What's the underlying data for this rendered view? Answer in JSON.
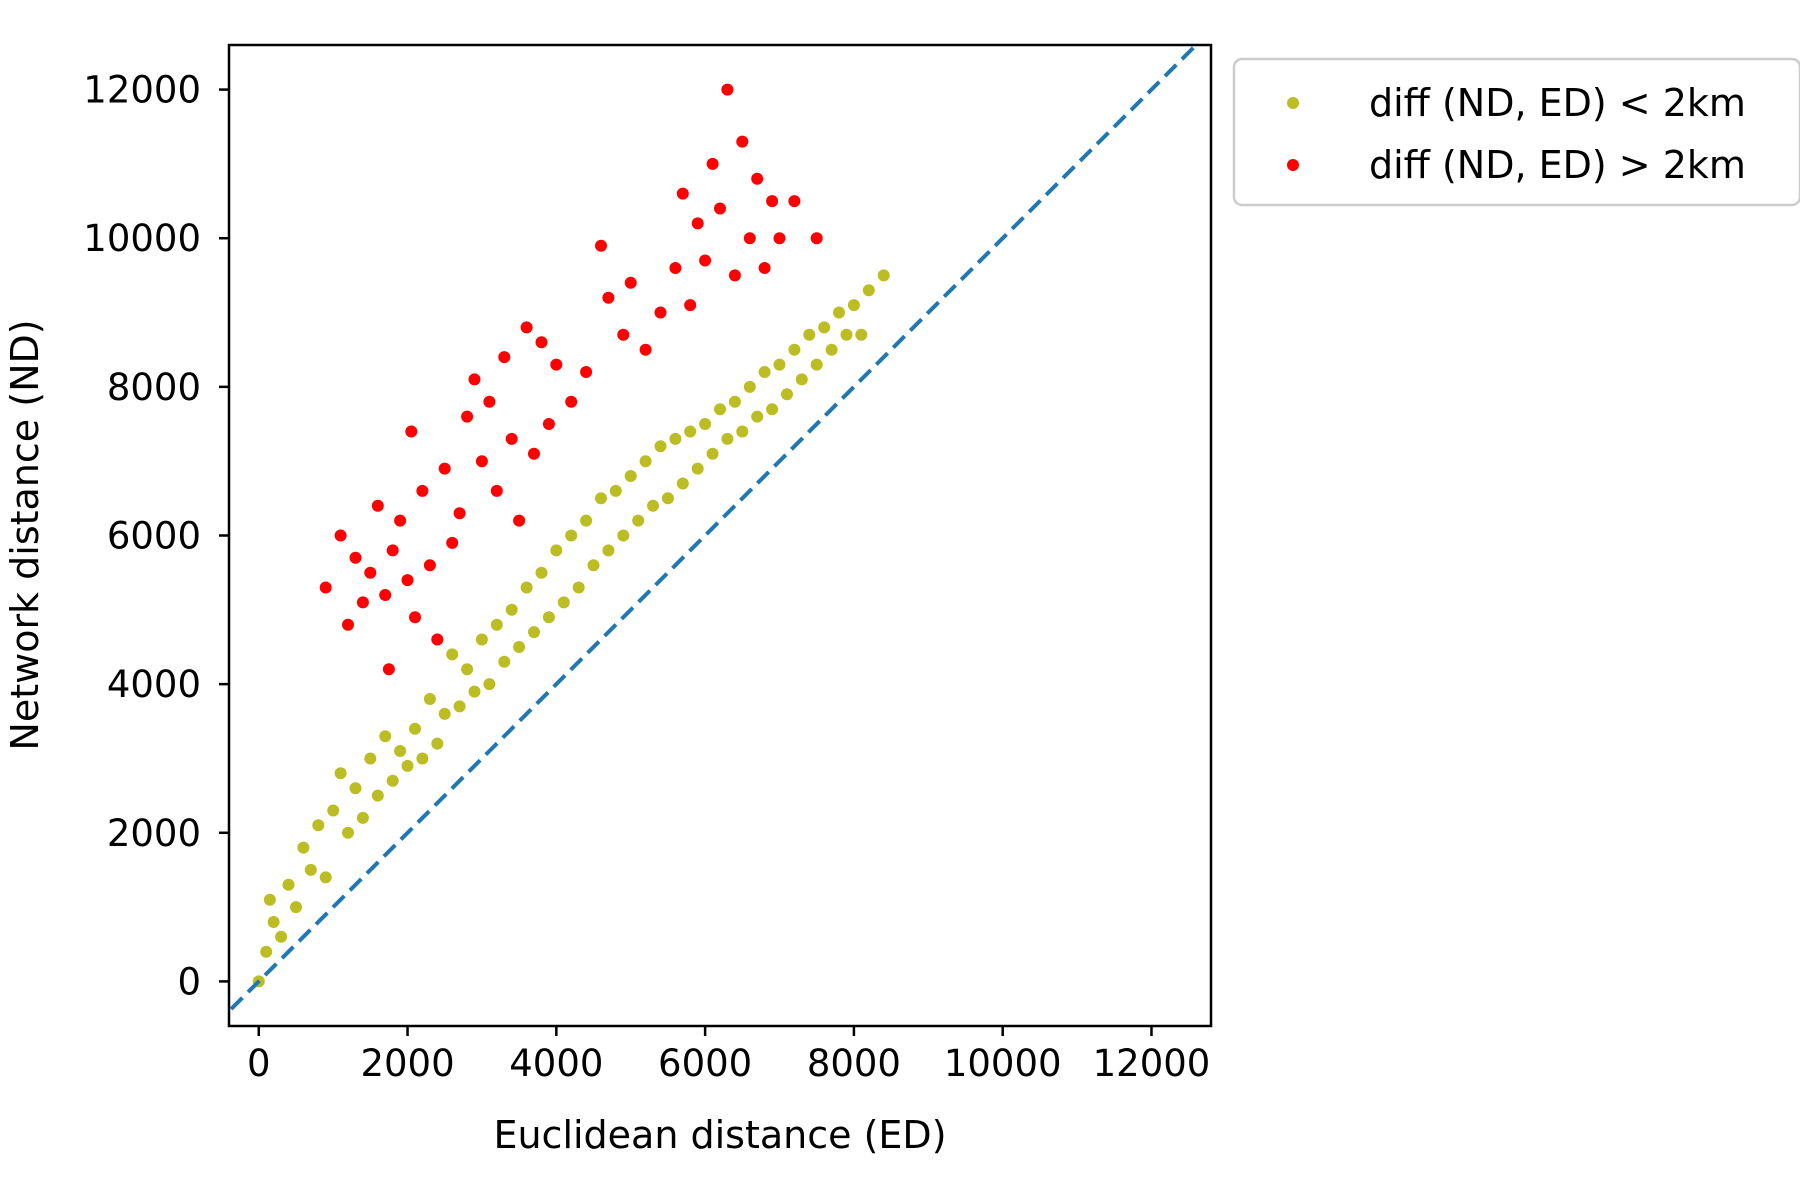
{
  "chart_data": {
    "type": "scatter",
    "xlabel": "Euclidean distance (ED)",
    "ylabel": "Network distance (ND)",
    "xlim": [
      -400,
      12800
    ],
    "ylim": [
      -600,
      12600
    ],
    "xticks": [
      0,
      2000,
      4000,
      6000,
      8000,
      10000,
      12000
    ],
    "yticks": [
      0,
      2000,
      4000,
      6000,
      8000,
      10000,
      12000
    ],
    "xtick_labels": [
      "0",
      "2000",
      "4000",
      "6000",
      "8000",
      "10000",
      "12000"
    ],
    "ytick_labels": [
      "0",
      "2000",
      "4000",
      "6000",
      "8000",
      "10000",
      "12000"
    ],
    "grid": false,
    "legend_position": "outside upper-right",
    "reference_line": {
      "type": "y = x",
      "style": "dashed",
      "color": "#1f77b4"
    },
    "series": [
      {
        "name": "diff (ND, ED) < 2km",
        "color": "#bcbd22",
        "points": [
          [
            0,
            0
          ],
          [
            100,
            400
          ],
          [
            200,
            800
          ],
          [
            150,
            1100
          ],
          [
            300,
            600
          ],
          [
            400,
            1300
          ],
          [
            500,
            1000
          ],
          [
            600,
            1800
          ],
          [
            700,
            1500
          ],
          [
            800,
            2100
          ],
          [
            900,
            1400
          ],
          [
            1000,
            2300
          ],
          [
            1100,
            2800
          ],
          [
            1200,
            2000
          ],
          [
            1300,
            2600
          ],
          [
            1400,
            2200
          ],
          [
            1500,
            3000
          ],
          [
            1600,
            2500
          ],
          [
            1700,
            3300
          ],
          [
            1800,
            2700
          ],
          [
            1900,
            3100
          ],
          [
            2000,
            2900
          ],
          [
            2100,
            3400
          ],
          [
            2200,
            3000
          ],
          [
            2300,
            3800
          ],
          [
            2400,
            3200
          ],
          [
            2500,
            3600
          ],
          [
            2600,
            4400
          ],
          [
            2700,
            3700
          ],
          [
            2800,
            4200
          ],
          [
            2900,
            3900
          ],
          [
            3000,
            4600
          ],
          [
            3100,
            4000
          ],
          [
            3200,
            4800
          ],
          [
            3300,
            4300
          ],
          [
            3400,
            5000
          ],
          [
            3500,
            4500
          ],
          [
            3600,
            5300
          ],
          [
            3700,
            4700
          ],
          [
            3800,
            5500
          ],
          [
            3900,
            4900
          ],
          [
            4000,
            5800
          ],
          [
            4100,
            5100
          ],
          [
            4200,
            6000
          ],
          [
            4300,
            5300
          ],
          [
            4400,
            6200
          ],
          [
            4500,
            5600
          ],
          [
            4600,
            6500
          ],
          [
            4700,
            5800
          ],
          [
            4800,
            6600
          ],
          [
            4900,
            6000
          ],
          [
            5000,
            6800
          ],
          [
            5100,
            6200
          ],
          [
            5200,
            7000
          ],
          [
            5300,
            6400
          ],
          [
            5400,
            7200
          ],
          [
            5500,
            6500
          ],
          [
            5600,
            7300
          ],
          [
            5700,
            6700
          ],
          [
            5800,
            7400
          ],
          [
            5900,
            6900
          ],
          [
            6000,
            7500
          ],
          [
            6100,
            7100
          ],
          [
            6200,
            7700
          ],
          [
            6300,
            7300
          ],
          [
            6400,
            7800
          ],
          [
            6500,
            7400
          ],
          [
            6600,
            8000
          ],
          [
            6700,
            7600
          ],
          [
            6800,
            8200
          ],
          [
            6900,
            7700
          ],
          [
            7000,
            8300
          ],
          [
            7100,
            7900
          ],
          [
            7200,
            8500
          ],
          [
            7300,
            8100
          ],
          [
            7400,
            8700
          ],
          [
            7500,
            8300
          ],
          [
            7600,
            8800
          ],
          [
            7700,
            8500
          ],
          [
            7800,
            9000
          ],
          [
            7900,
            8700
          ],
          [
            8000,
            9100
          ],
          [
            8100,
            8700
          ],
          [
            8200,
            9300
          ],
          [
            8400,
            9500
          ]
        ]
      },
      {
        "name": "diff (ND, ED) > 2km",
        "color": "#ff0000",
        "points": [
          [
            900,
            5300
          ],
          [
            1100,
            6000
          ],
          [
            1200,
            4800
          ],
          [
            1300,
            5700
          ],
          [
            1400,
            5100
          ],
          [
            1500,
            5500
          ],
          [
            1600,
            6400
          ],
          [
            1700,
            5200
          ],
          [
            1750,
            4200
          ],
          [
            1800,
            5800
          ],
          [
            1900,
            6200
          ],
          [
            2000,
            5400
          ],
          [
            2050,
            7400
          ],
          [
            2100,
            4900
          ],
          [
            2200,
            6600
          ],
          [
            2300,
            5600
          ],
          [
            2400,
            4600
          ],
          [
            2500,
            6900
          ],
          [
            2600,
            5900
          ],
          [
            2700,
            6300
          ],
          [
            2800,
            7600
          ],
          [
            2900,
            8100
          ],
          [
            3000,
            7000
          ],
          [
            3100,
            7800
          ],
          [
            3200,
            6600
          ],
          [
            3300,
            8400
          ],
          [
            3400,
            7300
          ],
          [
            3500,
            6200
          ],
          [
            3600,
            8800
          ],
          [
            3700,
            7100
          ],
          [
            3800,
            8600
          ],
          [
            3900,
            7500
          ],
          [
            4000,
            8300
          ],
          [
            4200,
            7800
          ],
          [
            4400,
            8200
          ],
          [
            4600,
            9900
          ],
          [
            4700,
            9200
          ],
          [
            4900,
            8700
          ],
          [
            5000,
            9400
          ],
          [
            5200,
            8500
          ],
          [
            5400,
            9000
          ],
          [
            5600,
            9600
          ],
          [
            5700,
            10600
          ],
          [
            5800,
            9100
          ],
          [
            5900,
            10200
          ],
          [
            6000,
            9700
          ],
          [
            6100,
            11000
          ],
          [
            6200,
            10400
          ],
          [
            6300,
            12000
          ],
          [
            6400,
            9500
          ],
          [
            6500,
            11300
          ],
          [
            6600,
            10000
          ],
          [
            6700,
            10800
          ],
          [
            6800,
            9600
          ],
          [
            6900,
            10500
          ],
          [
            7000,
            10000
          ],
          [
            7200,
            10500
          ],
          [
            7500,
            10000
          ]
        ]
      }
    ]
  }
}
